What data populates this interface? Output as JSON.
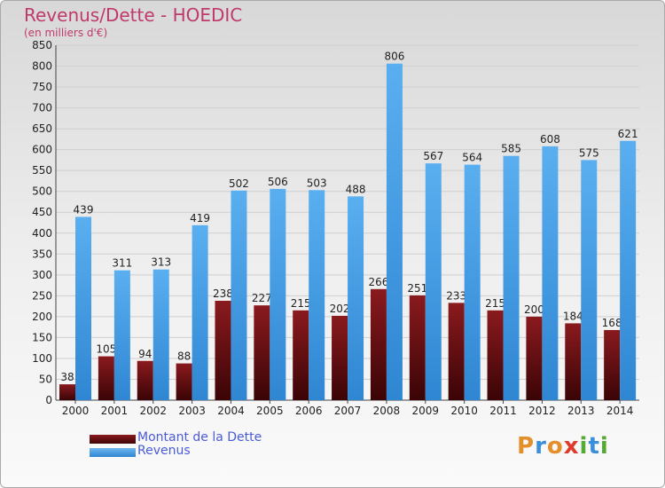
{
  "header": {
    "title": "Revenus/Dette - HOEDIC",
    "subtitle": "(en milliers d'€)"
  },
  "legend": {
    "items": [
      {
        "label": "Montant de la Dette",
        "color": "#6b0f12"
      },
      {
        "label": "Revenus",
        "color": "#3f9be3"
      }
    ]
  },
  "logo": {
    "letters": [
      "P",
      "r",
      "o",
      "x",
      "i",
      "t",
      "i"
    ],
    "colors": [
      "#e58f2a",
      "#3a8fd8",
      "#e58f2a",
      "#e23a2a",
      "#55aa33",
      "#3a8fd8",
      "#55aa33"
    ]
  },
  "chart_data": {
    "type": "bar",
    "categories": [
      "2000",
      "2001",
      "2002",
      "2003",
      "2004",
      "2005",
      "2006",
      "2007",
      "2008",
      "2009",
      "2010",
      "2011",
      "2012",
      "2013",
      "2014"
    ],
    "series": [
      {
        "name": "Montant de la Dette",
        "values": [
          38,
          105,
          94,
          88,
          238,
          227,
          215,
          202,
          266,
          251,
          233,
          215,
          200,
          184,
          168
        ],
        "color": "#6b0f12"
      },
      {
        "name": "Revenus",
        "values": [
          439,
          311,
          313,
          419,
          502,
          506,
          503,
          488,
          806,
          567,
          564,
          585,
          608,
          575,
          621
        ],
        "color": "#3f9be3"
      }
    ],
    "ylim": [
      0,
      850
    ],
    "yticks": [
      0,
      50,
      100,
      150,
      200,
      250,
      300,
      350,
      400,
      450,
      500,
      550,
      600,
      650,
      700,
      750,
      800,
      850
    ],
    "grid": true,
    "legend_position": "bottom-left"
  }
}
